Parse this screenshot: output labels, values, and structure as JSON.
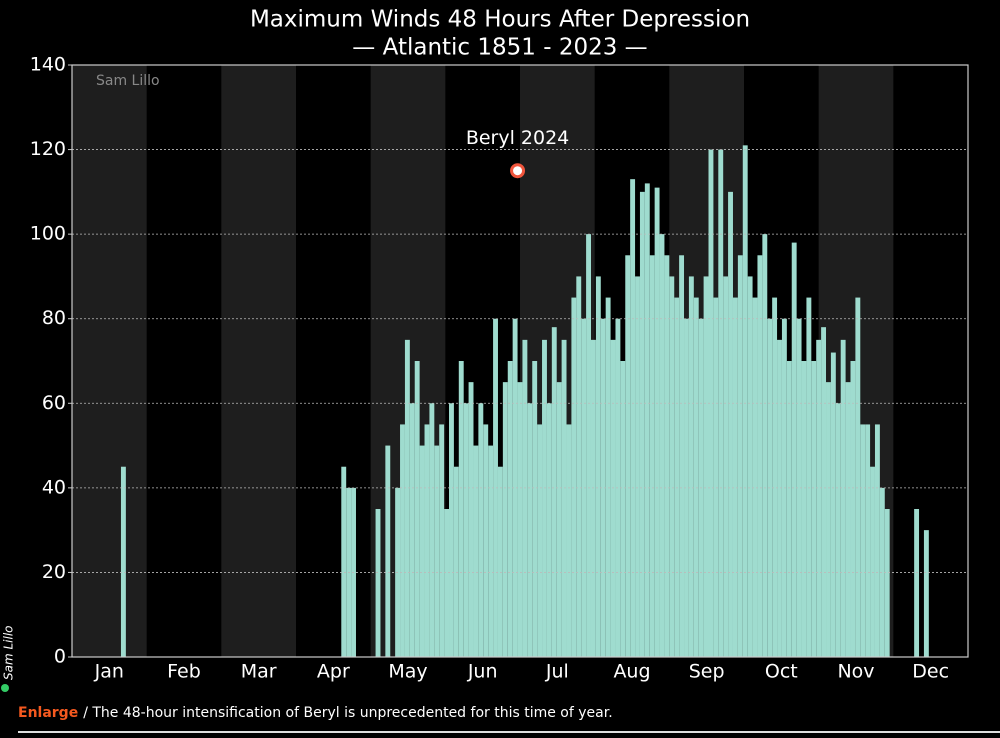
{
  "chart_data": {
    "type": "bar",
    "title": "Maximum Winds 48 Hours After Depression",
    "subtitle": "— Atlantic 1851 - 2023 —",
    "credit": "Sam Lillo",
    "side_credit": "Sam Lillo",
    "categories": [
      "Jan",
      "Feb",
      "Mar",
      "Apr",
      "May",
      "Jun",
      "Jul",
      "Aug",
      "Sep",
      "Oct",
      "Nov",
      "Dec"
    ],
    "x": [
      21,
      111,
      113,
      115,
      125,
      129,
      133,
      135,
      137,
      139,
      141,
      143,
      145,
      147,
      149,
      151,
      153,
      155,
      157,
      159,
      161,
      163,
      165,
      167,
      169,
      171,
      173,
      175,
      177,
      179,
      181,
      183,
      185,
      187,
      189,
      191,
      193,
      195,
      197,
      199,
      201,
      203,
      205,
      207,
      209,
      211,
      213,
      215,
      217,
      219,
      221,
      223,
      225,
      227,
      229,
      231,
      233,
      235,
      237,
      239,
      241,
      243,
      245,
      247,
      249,
      251,
      253,
      255,
      257,
      259,
      261,
      263,
      265,
      267,
      269,
      271,
      273,
      275,
      277,
      279,
      281,
      283,
      285,
      287,
      289,
      291,
      293,
      295,
      297,
      299,
      301,
      303,
      305,
      307,
      309,
      311,
      313,
      315,
      317,
      319,
      321,
      323,
      325,
      327,
      329,
      331,
      333,
      345,
      349
    ],
    "values": [
      45,
      45,
      40,
      40,
      35,
      50,
      40,
      55,
      75,
      60,
      70,
      50,
      55,
      60,
      50,
      55,
      35,
      60,
      45,
      70,
      60,
      65,
      50,
      60,
      55,
      50,
      80,
      45,
      65,
      70,
      80,
      65,
      75,
      60,
      70,
      55,
      75,
      60,
      78,
      65,
      75,
      55,
      85,
      90,
      80,
      100,
      75,
      90,
      80,
      85,
      75,
      80,
      70,
      95,
      113,
      90,
      110,
      112,
      95,
      111,
      100,
      95,
      90,
      85,
      95,
      80,
      90,
      85,
      80,
      90,
      120,
      85,
      120,
      90,
      110,
      85,
      95,
      121,
      90,
      85,
      95,
      100,
      80,
      85,
      75,
      80,
      70,
      98,
      80,
      70,
      85,
      70,
      75,
      78,
      65,
      72,
      60,
      75,
      65,
      70,
      85,
      55,
      55,
      45,
      55,
      40,
      35,
      35,
      30
    ],
    "color": "#9fdccf",
    "xlim": [
      0,
      366
    ],
    "ylim": [
      0,
      140
    ],
    "yticks": [
      0,
      20,
      40,
      60,
      80,
      100,
      120,
      140
    ],
    "grid": true,
    "annotation": {
      "text": "Beryl 2024",
      "x": 182,
      "y": 115
    }
  },
  "caption": {
    "link": "Enlarge",
    "text": "/ The 48-hour intensification of Beryl is unprecedented for this time of year."
  }
}
